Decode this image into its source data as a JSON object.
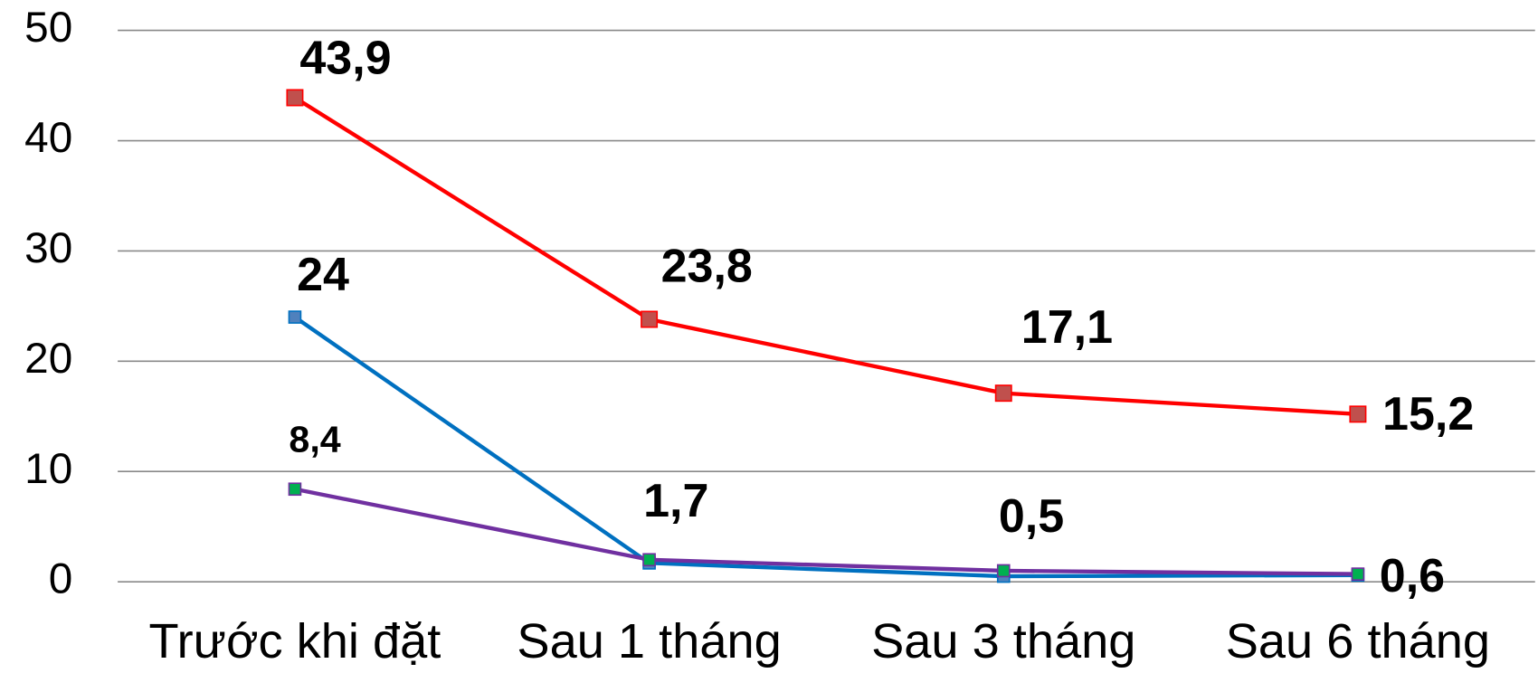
{
  "chart_data": {
    "type": "line",
    "categories": [
      "Trước khi đặt",
      "Sau 1 tháng",
      "Sau 3 tháng",
      "Sau 6 tháng"
    ],
    "series": [
      {
        "color": "#ff0000",
        "marker_color": "#c0504d",
        "values": [
          43.9,
          23.8,
          17.1,
          15.2
        ],
        "value_labels": [
          "43,9",
          "23,8",
          "17,1",
          "15,2"
        ]
      },
      {
        "color": "#0070c0",
        "marker_color": "#4f81bd",
        "values": [
          24,
          1.7,
          0.5,
          0.6
        ],
        "value_labels": [
          "24",
          "1,7",
          "0,5",
          "0,6"
        ]
      },
      {
        "color": "#7030a0",
        "marker_color": "#00b050",
        "values": [
          8.4,
          2,
          1,
          0.7
        ],
        "value_labels": [
          "8,4",
          null,
          null,
          null
        ]
      }
    ],
    "ylim": [
      0,
      50
    ],
    "yticks": [
      0,
      10,
      20,
      30,
      40,
      50
    ],
    "grid": true
  }
}
